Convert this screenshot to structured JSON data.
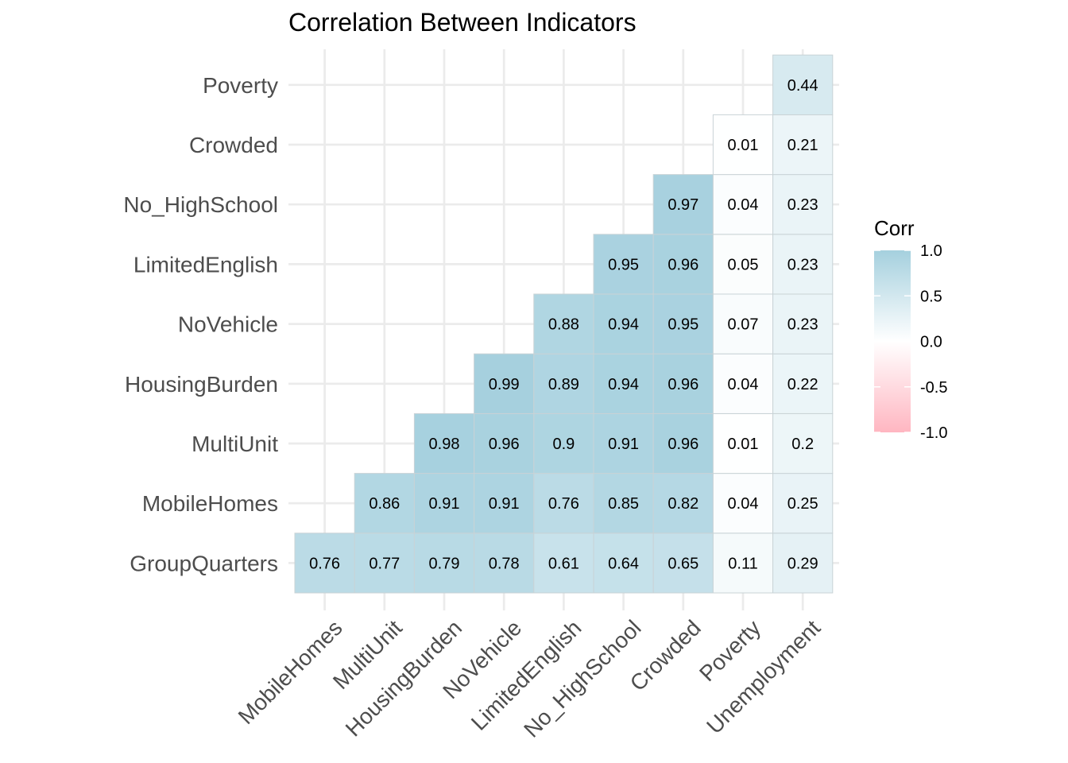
{
  "chart_data": {
    "type": "heatmap",
    "title": "Correlation Between Indicators",
    "x_categories": [
      "MobileHomes",
      "MultiUnit",
      "HousingBurden",
      "NoVehicle",
      "LimitedEnglish",
      "No_HighSchool",
      "Crowded",
      "Poverty",
      "Unemployment"
    ],
    "y_categories": [
      "GroupQuarters",
      "MobileHomes",
      "MultiUnit",
      "HousingBurden",
      "NoVehicle",
      "LimitedEnglish",
      "No_HighSchool",
      "Crowded",
      "Poverty"
    ],
    "cells": [
      {
        "x": "MobileHomes",
        "y": "GroupQuarters",
        "value": 0.76
      },
      {
        "x": "MultiUnit",
        "y": "GroupQuarters",
        "value": 0.77
      },
      {
        "x": "HousingBurden",
        "y": "GroupQuarters",
        "value": 0.79
      },
      {
        "x": "NoVehicle",
        "y": "GroupQuarters",
        "value": 0.78
      },
      {
        "x": "LimitedEnglish",
        "y": "GroupQuarters",
        "value": 0.61
      },
      {
        "x": "No_HighSchool",
        "y": "GroupQuarters",
        "value": 0.64
      },
      {
        "x": "Crowded",
        "y": "GroupQuarters",
        "value": 0.65
      },
      {
        "x": "Poverty",
        "y": "GroupQuarters",
        "value": 0.11
      },
      {
        "x": "Unemployment",
        "y": "GroupQuarters",
        "value": 0.29
      },
      {
        "x": "MultiUnit",
        "y": "MobileHomes",
        "value": 0.86
      },
      {
        "x": "HousingBurden",
        "y": "MobileHomes",
        "value": 0.91
      },
      {
        "x": "NoVehicle",
        "y": "MobileHomes",
        "value": 0.91
      },
      {
        "x": "LimitedEnglish",
        "y": "MobileHomes",
        "value": 0.76
      },
      {
        "x": "No_HighSchool",
        "y": "MobileHomes",
        "value": 0.85
      },
      {
        "x": "Crowded",
        "y": "MobileHomes",
        "value": 0.82
      },
      {
        "x": "Poverty",
        "y": "MobileHomes",
        "value": 0.04
      },
      {
        "x": "Unemployment",
        "y": "MobileHomes",
        "value": 0.25
      },
      {
        "x": "HousingBurden",
        "y": "MultiUnit",
        "value": 0.98
      },
      {
        "x": "NoVehicle",
        "y": "MultiUnit",
        "value": 0.96
      },
      {
        "x": "LimitedEnglish",
        "y": "MultiUnit",
        "value": 0.9
      },
      {
        "x": "No_HighSchool",
        "y": "MultiUnit",
        "value": 0.91
      },
      {
        "x": "Crowded",
        "y": "MultiUnit",
        "value": 0.96
      },
      {
        "x": "Poverty",
        "y": "MultiUnit",
        "value": 0.01
      },
      {
        "x": "Unemployment",
        "y": "MultiUnit",
        "value": 0.2
      },
      {
        "x": "NoVehicle",
        "y": "HousingBurden",
        "value": 0.99
      },
      {
        "x": "LimitedEnglish",
        "y": "HousingBurden",
        "value": 0.89
      },
      {
        "x": "No_HighSchool",
        "y": "HousingBurden",
        "value": 0.94
      },
      {
        "x": "Crowded",
        "y": "HousingBurden",
        "value": 0.96
      },
      {
        "x": "Poverty",
        "y": "HousingBurden",
        "value": 0.04
      },
      {
        "x": "Unemployment",
        "y": "HousingBurden",
        "value": 0.22
      },
      {
        "x": "LimitedEnglish",
        "y": "NoVehicle",
        "value": 0.88
      },
      {
        "x": "No_HighSchool",
        "y": "NoVehicle",
        "value": 0.94
      },
      {
        "x": "Crowded",
        "y": "NoVehicle",
        "value": 0.95
      },
      {
        "x": "Poverty",
        "y": "NoVehicle",
        "value": 0.07
      },
      {
        "x": "Unemployment",
        "y": "NoVehicle",
        "value": 0.23
      },
      {
        "x": "No_HighSchool",
        "y": "LimitedEnglish",
        "value": 0.95
      },
      {
        "x": "Crowded",
        "y": "LimitedEnglish",
        "value": 0.96
      },
      {
        "x": "Poverty",
        "y": "LimitedEnglish",
        "value": 0.05
      },
      {
        "x": "Unemployment",
        "y": "LimitedEnglish",
        "value": 0.23
      },
      {
        "x": "Crowded",
        "y": "No_HighSchool",
        "value": 0.97
      },
      {
        "x": "Poverty",
        "y": "No_HighSchool",
        "value": 0.04
      },
      {
        "x": "Unemployment",
        "y": "No_HighSchool",
        "value": 0.23
      },
      {
        "x": "Poverty",
        "y": "Crowded",
        "value": 0.01
      },
      {
        "x": "Unemployment",
        "y": "Crowded",
        "value": 0.21
      },
      {
        "x": "Unemployment",
        "y": "Poverty",
        "value": 0.44
      }
    ],
    "legend": {
      "title": "Corr",
      "position": "right",
      "ticks": [
        "1.0",
        "0.5",
        "0.0",
        "-0.5",
        "-1.0"
      ],
      "range": [
        -1,
        1
      ],
      "colors": {
        "low": "#ffb6c1",
        "mid": "#ffffff",
        "high": "#a5d0de"
      }
    },
    "grid": true
  }
}
